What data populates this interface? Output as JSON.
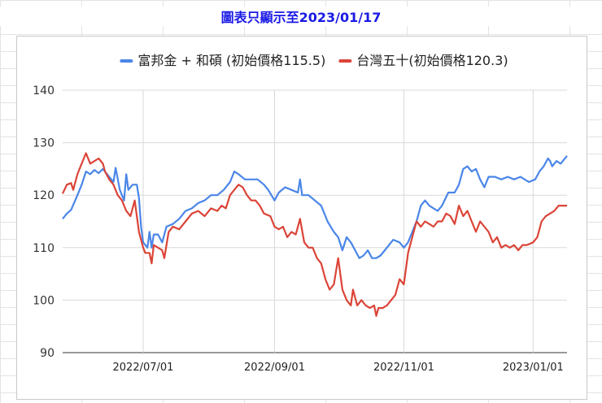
{
  "title": "圖表只顯示至2023/01/17",
  "chart_data": {
    "type": "line",
    "x_tick_labels": [
      "2022/07/01",
      "2022/09/01",
      "2022/11/01",
      "2023/01/01"
    ],
    "ylim": [
      90,
      140
    ],
    "y_ticks": [
      90,
      100,
      110,
      120,
      130,
      140
    ],
    "grid": true,
    "legend_position": "top",
    "series": [
      {
        "name": "富邦金 + 和碩 (初始價格115.5)",
        "color": "#4a86e8",
        "points": [
          [
            "2022-05-24",
            115.5
          ],
          [
            "2022-05-26",
            116.5
          ],
          [
            "2022-05-28",
            117.2
          ],
          [
            "2022-05-31",
            120
          ],
          [
            "2022-06-02",
            122
          ],
          [
            "2022-06-04",
            124.5
          ],
          [
            "2022-06-06",
            124
          ],
          [
            "2022-06-08",
            124.8
          ],
          [
            "2022-06-10",
            124.2
          ],
          [
            "2022-06-12",
            125
          ],
          [
            "2022-06-14",
            124
          ],
          [
            "2022-06-16",
            123
          ],
          [
            "2022-06-17",
            122.5
          ],
          [
            "2022-06-18",
            125.2
          ],
          [
            "2022-06-20",
            121
          ],
          [
            "2022-06-22",
            119
          ],
          [
            "2022-06-23",
            124
          ],
          [
            "2022-06-24",
            121
          ],
          [
            "2022-06-26",
            122
          ],
          [
            "2022-06-28",
            122
          ],
          [
            "2022-06-29",
            119.5
          ],
          [
            "2022-06-30",
            114
          ],
          [
            "2022-07-01",
            111
          ],
          [
            "2022-07-03",
            110
          ],
          [
            "2022-07-04",
            113
          ],
          [
            "2022-07-05",
            110
          ],
          [
            "2022-07-06",
            112.5
          ],
          [
            "2022-07-08",
            112.5
          ],
          [
            "2022-07-10",
            111
          ],
          [
            "2022-07-12",
            114
          ],
          [
            "2022-07-15",
            114.5
          ],
          [
            "2022-07-18",
            115.5
          ],
          [
            "2022-07-21",
            117
          ],
          [
            "2022-07-24",
            117.5
          ],
          [
            "2022-07-27",
            118.5
          ],
          [
            "2022-07-30",
            119
          ],
          [
            "2022-08-02",
            120
          ],
          [
            "2022-08-05",
            120
          ],
          [
            "2022-08-08",
            121
          ],
          [
            "2022-08-11",
            122.5
          ],
          [
            "2022-08-13",
            124.5
          ],
          [
            "2022-08-15",
            124
          ],
          [
            "2022-08-18",
            123
          ],
          [
            "2022-08-21",
            123
          ],
          [
            "2022-08-24",
            123
          ],
          [
            "2022-08-27",
            122
          ],
          [
            "2022-08-29",
            121
          ],
          [
            "2022-09-01",
            119
          ],
          [
            "2022-09-03",
            120.5
          ],
          [
            "2022-09-06",
            121.5
          ],
          [
            "2022-09-09",
            121
          ],
          [
            "2022-09-12",
            120.5
          ],
          [
            "2022-09-13",
            123
          ],
          [
            "2022-09-14",
            120
          ],
          [
            "2022-09-17",
            120
          ],
          [
            "2022-09-20",
            119
          ],
          [
            "2022-09-23",
            118
          ],
          [
            "2022-09-26",
            115
          ],
          [
            "2022-09-29",
            113
          ],
          [
            "2022-10-01",
            112
          ],
          [
            "2022-10-03",
            109.5
          ],
          [
            "2022-10-05",
            112
          ],
          [
            "2022-10-07",
            111
          ],
          [
            "2022-10-09",
            109.5
          ],
          [
            "2022-10-11",
            108
          ],
          [
            "2022-10-13",
            108.5
          ],
          [
            "2022-10-15",
            109.5
          ],
          [
            "2022-10-17",
            108
          ],
          [
            "2022-10-19",
            108
          ],
          [
            "2022-10-21",
            108.5
          ],
          [
            "2022-10-24",
            110
          ],
          [
            "2022-10-27",
            111.5
          ],
          [
            "2022-10-30",
            111
          ],
          [
            "2022-11-01",
            110
          ],
          [
            "2022-11-03",
            111
          ],
          [
            "2022-11-05",
            113
          ],
          [
            "2022-11-07",
            115
          ],
          [
            "2022-11-09",
            118
          ],
          [
            "2022-11-11",
            119
          ],
          [
            "2022-11-13",
            118
          ],
          [
            "2022-11-15",
            117.5
          ],
          [
            "2022-11-17",
            117
          ],
          [
            "2022-11-19",
            118
          ],
          [
            "2022-11-22",
            120.5
          ],
          [
            "2022-11-25",
            120.5
          ],
          [
            "2022-11-27",
            122
          ],
          [
            "2022-11-29",
            125
          ],
          [
            "2022-12-01",
            125.5
          ],
          [
            "2022-12-03",
            124.5
          ],
          [
            "2022-12-05",
            125
          ],
          [
            "2022-12-07",
            123
          ],
          [
            "2022-12-09",
            121.5
          ],
          [
            "2022-12-11",
            123.5
          ],
          [
            "2022-12-14",
            123.5
          ],
          [
            "2022-12-17",
            123
          ],
          [
            "2022-12-20",
            123.5
          ],
          [
            "2022-12-23",
            123
          ],
          [
            "2022-12-26",
            123.5
          ],
          [
            "2022-12-28",
            123
          ],
          [
            "2022-12-30",
            122.5
          ],
          [
            "2023-01-02",
            123
          ],
          [
            "2023-01-04",
            124.5
          ],
          [
            "2023-01-06",
            125.5
          ],
          [
            "2023-01-08",
            127
          ],
          [
            "2023-01-09",
            126.5
          ],
          [
            "2023-01-10",
            125.5
          ],
          [
            "2023-01-12",
            126.5
          ],
          [
            "2023-01-14",
            126
          ],
          [
            "2023-01-17",
            127.5
          ]
        ]
      },
      {
        "name": "台灣五十(初始價格120.3)",
        "color": "#db4437",
        "points": [
          [
            "2022-05-24",
            120.3
          ],
          [
            "2022-05-26",
            122
          ],
          [
            "2022-05-28",
            122.3
          ],
          [
            "2022-05-29",
            121
          ],
          [
            "2022-05-31",
            124
          ],
          [
            "2022-06-02",
            126
          ],
          [
            "2022-06-04",
            128
          ],
          [
            "2022-06-06",
            126
          ],
          [
            "2022-06-08",
            126.5
          ],
          [
            "2022-06-10",
            127
          ],
          [
            "2022-06-12",
            126
          ],
          [
            "2022-06-13",
            124.5
          ],
          [
            "2022-06-15",
            123
          ],
          [
            "2022-06-17",
            122
          ],
          [
            "2022-06-19",
            120
          ],
          [
            "2022-06-21",
            119
          ],
          [
            "2022-06-23",
            117
          ],
          [
            "2022-06-25",
            116
          ],
          [
            "2022-06-27",
            119
          ],
          [
            "2022-06-28",
            116
          ],
          [
            "2022-06-29",
            113
          ],
          [
            "2022-07-01",
            110
          ],
          [
            "2022-07-02",
            109
          ],
          [
            "2022-07-04",
            109
          ],
          [
            "2022-07-05",
            107
          ],
          [
            "2022-07-06",
            110.5
          ],
          [
            "2022-07-08",
            110
          ],
          [
            "2022-07-10",
            109.5
          ],
          [
            "2022-07-11",
            108
          ],
          [
            "2022-07-13",
            113
          ],
          [
            "2022-07-15",
            114
          ],
          [
            "2022-07-18",
            113.5
          ],
          [
            "2022-07-21",
            115
          ],
          [
            "2022-07-24",
            116.5
          ],
          [
            "2022-07-27",
            117
          ],
          [
            "2022-07-30",
            116
          ],
          [
            "2022-08-02",
            117.5
          ],
          [
            "2022-08-05",
            117
          ],
          [
            "2022-08-07",
            118
          ],
          [
            "2022-08-09",
            117.5
          ],
          [
            "2022-08-11",
            120
          ],
          [
            "2022-08-13",
            121
          ],
          [
            "2022-08-15",
            122
          ],
          [
            "2022-08-17",
            121.5
          ],
          [
            "2022-08-19",
            120
          ],
          [
            "2022-08-21",
            119
          ],
          [
            "2022-08-23",
            119
          ],
          [
            "2022-08-25",
            118
          ],
          [
            "2022-08-27",
            116.5
          ],
          [
            "2022-08-30",
            116
          ],
          [
            "2022-09-01",
            114
          ],
          [
            "2022-09-03",
            113.5
          ],
          [
            "2022-09-05",
            114
          ],
          [
            "2022-09-07",
            112
          ],
          [
            "2022-09-09",
            113
          ],
          [
            "2022-09-11",
            112.5
          ],
          [
            "2022-09-13",
            115.5
          ],
          [
            "2022-09-15",
            111
          ],
          [
            "2022-09-17",
            110
          ],
          [
            "2022-09-19",
            110
          ],
          [
            "2022-09-21",
            108
          ],
          [
            "2022-09-23",
            107
          ],
          [
            "2022-09-25",
            104
          ],
          [
            "2022-09-27",
            102
          ],
          [
            "2022-09-29",
            103
          ],
          [
            "2022-10-01",
            108
          ],
          [
            "2022-10-03",
            102
          ],
          [
            "2022-10-05",
            100
          ],
          [
            "2022-10-07",
            99
          ],
          [
            "2022-10-08",
            102
          ],
          [
            "2022-10-10",
            99
          ],
          [
            "2022-10-12",
            100
          ],
          [
            "2022-10-14",
            99
          ],
          [
            "2022-10-16",
            98.5
          ],
          [
            "2022-10-18",
            99
          ],
          [
            "2022-10-19",
            97
          ],
          [
            "2022-10-20",
            98.5
          ],
          [
            "2022-10-22",
            98.5
          ],
          [
            "2022-10-24",
            99
          ],
          [
            "2022-10-26",
            100
          ],
          [
            "2022-10-28",
            101
          ],
          [
            "2022-10-30",
            104
          ],
          [
            "2022-11-01",
            103
          ],
          [
            "2022-11-03",
            109
          ],
          [
            "2022-11-05",
            112
          ],
          [
            "2022-11-07",
            115
          ],
          [
            "2022-11-09",
            114
          ],
          [
            "2022-11-11",
            115
          ],
          [
            "2022-11-13",
            114.5
          ],
          [
            "2022-11-15",
            114
          ],
          [
            "2022-11-17",
            115
          ],
          [
            "2022-11-19",
            115
          ],
          [
            "2022-11-21",
            116.5
          ],
          [
            "2022-11-23",
            116
          ],
          [
            "2022-11-25",
            114.5
          ],
          [
            "2022-11-27",
            118
          ],
          [
            "2022-11-29",
            116
          ],
          [
            "2022-12-01",
            117
          ],
          [
            "2022-12-03",
            115
          ],
          [
            "2022-12-05",
            113
          ],
          [
            "2022-12-07",
            115
          ],
          [
            "2022-12-09",
            114
          ],
          [
            "2022-12-11",
            113
          ],
          [
            "2022-12-13",
            111
          ],
          [
            "2022-12-15",
            112
          ],
          [
            "2022-12-17",
            110
          ],
          [
            "2022-12-19",
            110.5
          ],
          [
            "2022-12-21",
            110
          ],
          [
            "2022-12-23",
            110.5
          ],
          [
            "2022-12-25",
            109.5
          ],
          [
            "2022-12-27",
            110.5
          ],
          [
            "2022-12-29",
            110.5
          ],
          [
            "2023-01-01",
            111
          ],
          [
            "2023-01-03",
            112
          ],
          [
            "2023-01-05",
            115
          ],
          [
            "2023-01-07",
            116
          ],
          [
            "2023-01-09",
            116.5
          ],
          [
            "2023-01-11",
            117
          ],
          [
            "2023-01-13",
            118
          ],
          [
            "2023-01-17",
            118
          ]
        ]
      }
    ]
  }
}
